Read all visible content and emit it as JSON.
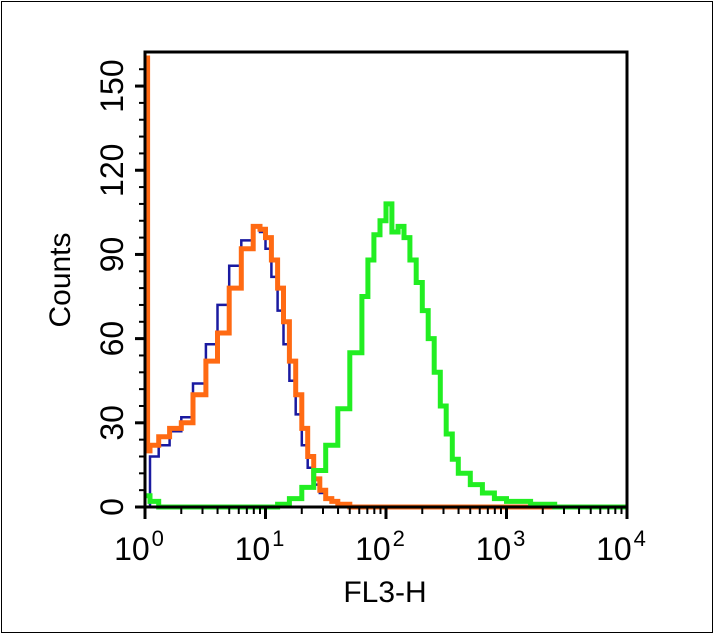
{
  "chart_data": {
    "type": "line",
    "subtype": "flow-cytometry-histogram",
    "title": "",
    "xlabel": "FL3-H",
    "ylabel": "Counts",
    "x_scale": "log",
    "xlim": [
      1,
      10000
    ],
    "ylim": [
      0,
      160
    ],
    "x_ticks": [
      {
        "base": "10",
        "exp": "0"
      },
      {
        "base": "10",
        "exp": "1"
      },
      {
        "base": "10",
        "exp": "2"
      },
      {
        "base": "10",
        "exp": "3"
      },
      {
        "base": "10",
        "exp": "4"
      }
    ],
    "y_ticks": [
      "0",
      "30",
      "60",
      "90",
      "120",
      "150"
    ],
    "grid": false,
    "legend": "none",
    "series": [
      {
        "color": "#1a1aa0",
        "x": [
          1.0,
          1.1,
          1.3,
          1.6,
          2.0,
          2.5,
          3.2,
          4.0,
          5.0,
          6.3,
          7.9,
          9.0,
          10.0,
          11.2,
          12.6,
          14.1,
          15.8,
          17.8,
          20.0,
          22.4,
          25.1,
          28.2,
          31.6,
          35.5,
          39.8,
          50.1,
          100,
          1000,
          10000
        ],
        "y": [
          0,
          18,
          22,
          27,
          32,
          44,
          58,
          72,
          86,
          95,
          100,
          98,
          92,
          82,
          70,
          58,
          45,
          33,
          22,
          14,
          8,
          5,
          3,
          2,
          1,
          0,
          0,
          0,
          0
        ]
      },
      {
        "color": "#ff6a13",
        "x": [
          1.0,
          1.02,
          1.05,
          1.1,
          1.3,
          1.6,
          2.0,
          2.5,
          3.2,
          4.0,
          5.0,
          6.3,
          7.9,
          9.0,
          10.0,
          11.2,
          12.6,
          14.1,
          15.8,
          17.8,
          20.0,
          22.4,
          25.1,
          28.2,
          31.6,
          35.5,
          39.8,
          50.1,
          63.1,
          100,
          1000,
          10000
        ],
        "y": [
          160,
          160,
          20,
          22,
          25,
          28,
          30,
          40,
          52,
          62,
          78,
          92,
          100,
          99,
          96,
          88,
          78,
          66,
          52,
          40,
          28,
          18,
          10,
          6,
          3,
          2,
          1,
          0,
          0,
          0,
          0,
          0
        ]
      },
      {
        "color": "#22ee22",
        "x": [
          1.0,
          1.1,
          1.3,
          2.0,
          5.0,
          10.0,
          12.6,
          15.8,
          20.0,
          25.1,
          31.6,
          39.8,
          50.1,
          63.1,
          70.8,
          79.4,
          89.1,
          100,
          112,
          126,
          141,
          158,
          178,
          200,
          224,
          251,
          282,
          316,
          355,
          398,
          501,
          631,
          794,
          1000,
          1259,
          1585,
          2512,
          5012,
          10000
        ],
        "y": [
          4,
          2,
          0,
          0,
          0,
          0,
          1,
          3,
          7,
          13,
          22,
          35,
          55,
          75,
          88,
          97,
          102,
          108,
          98,
          100,
          96,
          88,
          80,
          70,
          60,
          48,
          36,
          26,
          17,
          12,
          8,
          5,
          3,
          2,
          2,
          1,
          0,
          0,
          0
        ]
      }
    ]
  }
}
